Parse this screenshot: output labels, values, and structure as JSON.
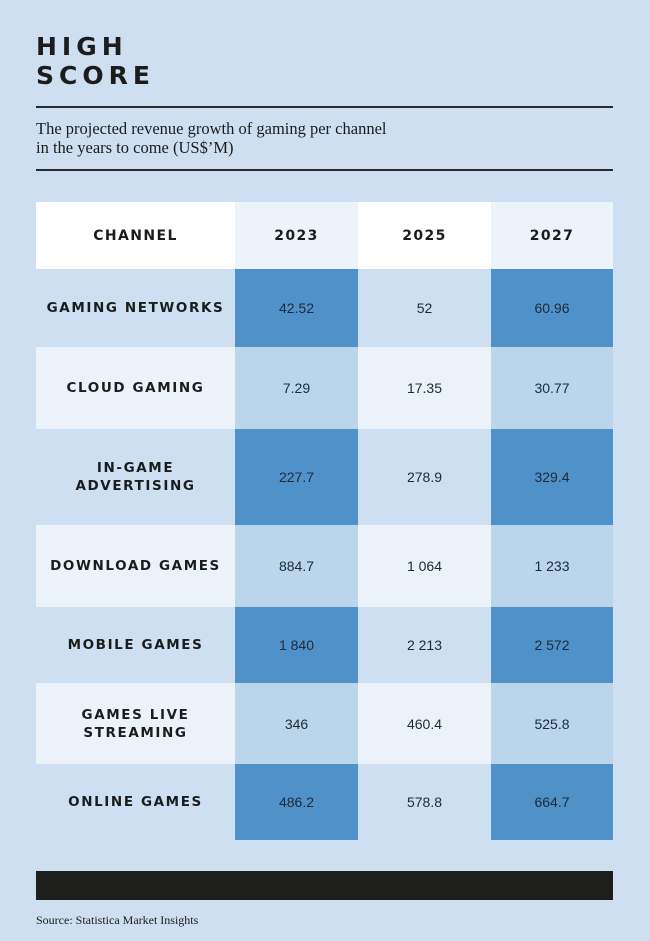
{
  "title_lines": [
    "HIGH",
    "SCORE"
  ],
  "subtitle_lines": [
    "The projected revenue growth of gaming per channel",
    "in the years to come (US$’M)"
  ],
  "source": "Source: Statistica Market Insights",
  "colors": {
    "background": "#cddff0",
    "highlight_cell": "#4e92c9",
    "light_cell": "#bbd5ea",
    "pale_row": "#ebf2fa",
    "footer_bar": "#1e1e1c"
  },
  "chart_data": {
    "type": "table",
    "columns": [
      "CHANNEL",
      "2023",
      "2025",
      "2027"
    ],
    "rows": [
      {
        "channel": "GAMING NETWORKS",
        "values": [
          "42.52",
          "52",
          "60.96"
        ]
      },
      {
        "channel": "CLOUD GAMING",
        "values": [
          "7.29",
          "17.35",
          "30.77"
        ]
      },
      {
        "channel": "IN-GAME ADVERTISING",
        "values": [
          "227.7",
          "278.9",
          "329.4"
        ]
      },
      {
        "channel": "DOWNLOAD GAMES",
        "values": [
          "884.7",
          "1 064",
          "1 233"
        ]
      },
      {
        "channel": "MOBILE GAMES",
        "values": [
          "1 840",
          "2 213",
          "2 572"
        ]
      },
      {
        "channel": "GAMES LIVE STREAMING",
        "values": [
          "346",
          "460.4",
          "525.8"
        ]
      },
      {
        "channel": "ONLINE GAMES",
        "values": [
          "486.2",
          "578.8",
          "664.7"
        ]
      }
    ]
  }
}
